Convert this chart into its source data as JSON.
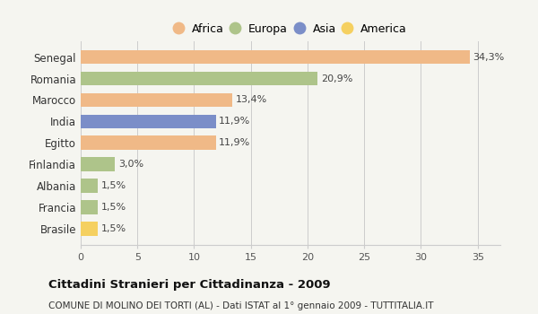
{
  "categories": [
    "Senegal",
    "Romania",
    "Marocco",
    "India",
    "Egitto",
    "Finlandia",
    "Albania",
    "Francia",
    "Brasile"
  ],
  "values": [
    34.3,
    20.9,
    13.4,
    11.9,
    11.9,
    3.0,
    1.5,
    1.5,
    1.5
  ],
  "labels": [
    "34,3%",
    "20,9%",
    "13,4%",
    "11,9%",
    "11,9%",
    "3,0%",
    "1,5%",
    "1,5%",
    "1,5%"
  ],
  "colors": [
    "#f0b987",
    "#aec48a",
    "#f0b987",
    "#7b8ec8",
    "#f0b987",
    "#aec48a",
    "#aec48a",
    "#aec48a",
    "#f5d060"
  ],
  "legend_items": [
    {
      "label": "Africa",
      "color": "#f0b987"
    },
    {
      "label": "Europa",
      "color": "#aec48a"
    },
    {
      "label": "Asia",
      "color": "#7b8ec8"
    },
    {
      "label": "America",
      "color": "#f5d060"
    }
  ],
  "xlim": [
    0,
    37
  ],
  "xticks": [
    0,
    5,
    10,
    15,
    20,
    25,
    30,
    35
  ],
  "title": "Cittadini Stranieri per Cittadinanza - 2009",
  "subtitle": "COMUNE DI MOLINO DEI TORTI (AL) - Dati ISTAT al 1° gennaio 2009 - TUTTITALIA.IT",
  "background_color": "#f5f5f0",
  "grid_color": "#cccccc"
}
